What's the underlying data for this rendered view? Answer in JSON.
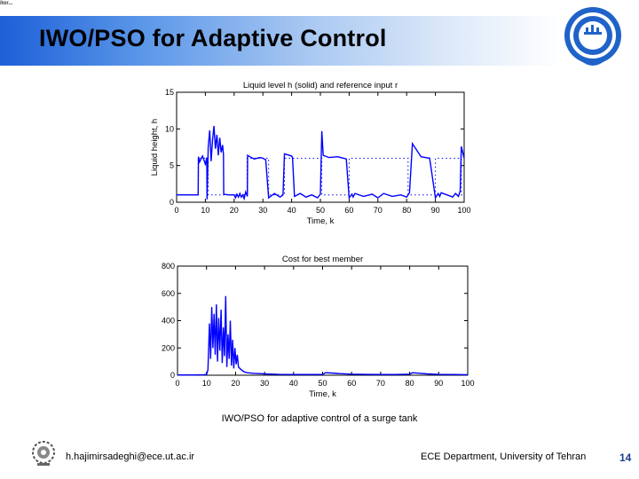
{
  "header": {
    "corner_text": "itor...",
    "title": "IWO/PSO for Adaptive Control"
  },
  "figure": {
    "caption": "IWO/PSO for adaptive control of a surge tank"
  },
  "footer": {
    "email": "h.hajimirsadeghi@ece.ut.ac.ir",
    "department": "ECE Department, University of Tehran",
    "page_number": "14"
  },
  "colors": {
    "title_band_start": "#1d5fd8",
    "title_band_end": "#ffffff",
    "plot_line": "#0000ff",
    "page_number": "#1a3c8a"
  },
  "icons": {
    "right_logo": "university-of-tehran-seal-icon",
    "left_logo": "university-emblem-icon"
  },
  "chart_data": [
    {
      "type": "line",
      "title": "Liquid level h (solid) and reference input r",
      "xlabel": "Time, k",
      "ylabel": "Liquid height, h",
      "xlim": [
        0,
        100
      ],
      "ylim": [
        0,
        15
      ],
      "xticks": [
        0,
        10,
        20,
        30,
        40,
        50,
        60,
        70,
        80,
        90,
        100
      ],
      "yticks": [
        0,
        5,
        10,
        15
      ],
      "ytick_labels": [
        "0",
        "5",
        "10",
        "15"
      ],
      "grid": false,
      "series": [
        {
          "style": "solid",
          "x": [
            0,
            7.5,
            7.6,
            8,
            9,
            10,
            10.5,
            10.6,
            11,
            11.5,
            12,
            12.5,
            13,
            13.5,
            14,
            14.5,
            15,
            15.5,
            16,
            16.3,
            16.4,
            18,
            20,
            20.5,
            21,
            21.5,
            22,
            22.5,
            23,
            23.5,
            24,
            24.6,
            24.7,
            25.5,
            27,
            29,
            30,
            31,
            32,
            34,
            36,
            37,
            37.5,
            40,
            40.3,
            41,
            43,
            45,
            47,
            49,
            50,
            50.5,
            51,
            53,
            56,
            59,
            60,
            61,
            61.4,
            62,
            65,
            68,
            70,
            72,
            75,
            78,
            80,
            81,
            82,
            85,
            88,
            90,
            91,
            91.5,
            92,
            94,
            96,
            97,
            98,
            98.6,
            99,
            100
          ],
          "y": [
            1,
            1,
            6.2,
            5.5,
            6.3,
            5.2,
            6.1,
            0.4,
            7.5,
            9.8,
            5.6,
            8.5,
            10.4,
            7.3,
            9.2,
            6.4,
            8.8,
            6.8,
            7.8,
            6.5,
            1.1,
            1,
            1,
            0.6,
            1.1,
            0.7,
            1.2,
            0.7,
            1,
            0.5,
            1.4,
            0.8,
            6.4,
            6.2,
            5.9,
            6.1,
            6,
            5.8,
            0.6,
            1.2,
            0.7,
            1,
            6.6,
            6.3,
            6.1,
            0.8,
            1.2,
            0.7,
            1,
            0.6,
            1.1,
            9.7,
            6.4,
            6.1,
            6.2,
            5.9,
            0.6,
            1.1,
            0.7,
            1.2,
            0.8,
            1.1,
            0.6,
            1.2,
            0.8,
            1,
            0.7,
            1.3,
            8,
            6.2,
            6,
            0.6,
            1.2,
            0.8,
            1.3,
            1,
            0.7,
            1.2,
            0.8,
            1.5,
            7.6,
            6
          ]
        },
        {
          "style": "dotted",
          "x": [
            0,
            7.5,
            7.5,
            11,
            11,
            24.5,
            24.5,
            32,
            32,
            37.5,
            37.5,
            50.5,
            50.5,
            60,
            60,
            80.5,
            80.5,
            90,
            90,
            99,
            99,
            100
          ],
          "y": [
            1,
            1,
            6,
            6,
            1,
            1,
            6,
            6,
            1,
            1,
            6,
            6,
            1,
            1,
            6,
            6,
            1,
            1,
            6,
            6,
            1,
            1
          ]
        }
      ]
    },
    {
      "type": "line",
      "title": "Cost for best member",
      "xlabel": "Time, k",
      "ylabel": "",
      "xlim": [
        0,
        100
      ],
      "ylim": [
        0,
        800
      ],
      "xticks": [
        0,
        10,
        20,
        30,
        40,
        50,
        60,
        70,
        80,
        90,
        100
      ],
      "yticks": [
        0,
        200,
        400,
        600,
        800
      ],
      "ytick_labels": [
        "0",
        "200",
        "400",
        "600",
        "800"
      ],
      "grid": false,
      "series": [
        {
          "style": "solid",
          "x": [
            0,
            5,
            9,
            10,
            10.5,
            11,
            11.4,
            11.8,
            12.2,
            12.6,
            13,
            13.4,
            13.8,
            14.2,
            14.6,
            15,
            15.4,
            15.8,
            16.2,
            16.6,
            17,
            17.4,
            17.8,
            18.2,
            18.6,
            19,
            19.4,
            19.8,
            20.2,
            20.6,
            21,
            22,
            23,
            24,
            26,
            28,
            30,
            33,
            35,
            40,
            45,
            50,
            51,
            53,
            56,
            60,
            65,
            70,
            75,
            80,
            81,
            83,
            86,
            90,
            95,
            100
          ],
          "y": [
            2,
            2,
            3,
            5,
            40,
            380,
            120,
            500,
            200,
            450,
            150,
            520,
            100,
            420,
            180,
            480,
            90,
            350,
            140,
            580,
            60,
            300,
            120,
            400,
            70,
            260,
            50,
            200,
            80,
            150,
            60,
            40,
            25,
            18,
            14,
            12,
            10,
            8,
            6,
            5,
            5,
            6,
            18,
            16,
            12,
            8,
            6,
            5,
            5,
            8,
            18,
            15,
            10,
            6,
            5,
            4
          ]
        }
      ]
    }
  ]
}
